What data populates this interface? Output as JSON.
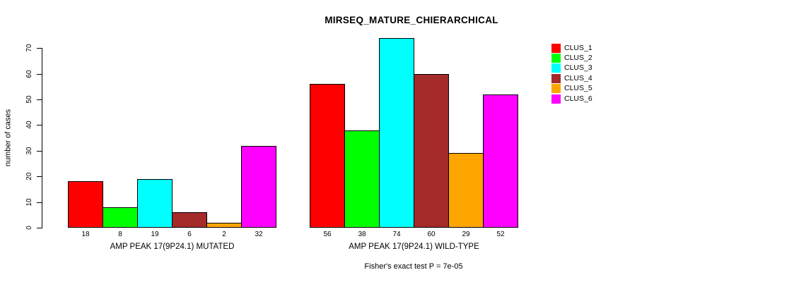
{
  "title": "MIRSEQ_MATURE_CHIERARCHICAL",
  "footer": "Fisher's exact test P = 7e-05",
  "chart_data": {
    "type": "bar",
    "title": "MIRSEQ_MATURE_CHIERARCHICAL",
    "ylabel": "number of cases",
    "xlabel": "",
    "ylim": [
      0,
      70
    ],
    "yticks": [
      0,
      10,
      20,
      30,
      40,
      50,
      60,
      70
    ],
    "grid": false,
    "legend_position": "top-right",
    "bar_value_labels_shown": true,
    "series_labels": [
      "CLUS_1",
      "CLUS_2",
      "CLUS_3",
      "CLUS_4",
      "CLUS_5",
      "CLUS_6"
    ],
    "colors": [
      "#FF0000",
      "#00FF00",
      "#00FFFF",
      "#A52A2A",
      "#FFA500",
      "#FF00FF"
    ],
    "groups": [
      {
        "label": "AMP PEAK 17(9P24.1) MUTATED",
        "values": [
          18,
          8,
          19,
          6,
          2,
          32
        ]
      },
      {
        "label": "AMP PEAK 17(9P24.1) WILD-TYPE",
        "values": [
          56,
          38,
          74,
          60,
          29,
          52
        ]
      }
    ],
    "annotations": [
      "Fisher's exact test P = 7e-05"
    ]
  }
}
